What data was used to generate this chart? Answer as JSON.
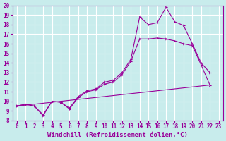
{
  "xlabel": "Windchill (Refroidissement éolien,°C)",
  "background_color": "#c8ecec",
  "grid_color": "#ffffff",
  "line_color": "#990099",
  "xlim": [
    -0.5,
    23.5
  ],
  "ylim": [
    8,
    20
  ],
  "xticks": [
    0,
    1,
    2,
    3,
    4,
    5,
    6,
    7,
    8,
    9,
    10,
    11,
    12,
    13,
    14,
    15,
    16,
    17,
    18,
    19,
    20,
    21,
    22,
    23
  ],
  "xtick_labels": [
    "0",
    "1",
    "2",
    "3",
    "4",
    "5",
    "6",
    "7",
    "8",
    "9",
    "10",
    "11",
    "12",
    "13",
    "14",
    "15",
    "16",
    "17",
    "18",
    "19",
    "20",
    "21",
    "22",
    "23"
  ],
  "yticks": [
    8,
    9,
    10,
    11,
    12,
    13,
    14,
    15,
    16,
    17,
    18,
    19,
    20
  ],
  "line1_x": [
    0,
    1,
    2,
    3,
    4,
    5,
    6,
    7,
    8,
    9,
    10,
    11,
    12,
    13,
    14,
    15,
    16,
    17,
    18,
    19,
    20,
    21,
    22
  ],
  "line1_y": [
    9.5,
    9.7,
    9.5,
    8.6,
    10.0,
    9.9,
    9.3,
    10.5,
    11.1,
    11.3,
    12.0,
    12.2,
    13.0,
    14.4,
    18.8,
    18.0,
    18.2,
    19.8,
    18.3,
    17.9,
    16.0,
    14.0,
    13.0
  ],
  "line2_x": [
    0,
    1,
    2,
    3,
    4,
    5,
    6,
    7,
    8,
    9,
    10,
    11,
    12,
    13,
    14,
    15,
    16,
    17,
    18,
    19,
    20,
    21,
    22
  ],
  "line2_y": [
    9.5,
    9.7,
    9.5,
    8.5,
    10.0,
    9.9,
    9.2,
    10.4,
    11.0,
    11.2,
    11.8,
    12.0,
    12.8,
    14.2,
    16.5,
    16.5,
    16.6,
    16.5,
    16.3,
    16.0,
    15.8,
    13.8,
    11.7
  ],
  "line3_x": [
    0,
    22
  ],
  "line3_y": [
    9.5,
    11.7
  ],
  "axis_fontsize": 6.5,
  "tick_fontsize": 5.5
}
